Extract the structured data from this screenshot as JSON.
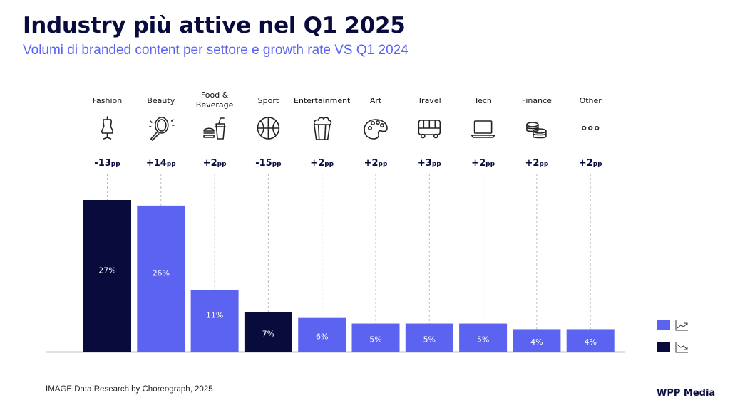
{
  "title": "Industry più attive nel Q1 2025",
  "subtitle": "Volumi di branded content per settore e growth rate VS Q1 2024",
  "footnote": "IMAGE Data Research by Choreograph, 2025",
  "brand": "WPP Media",
  "colors": {
    "up": "#5b63f0",
    "down": "#0a0b3d",
    "text": "#0a0b3d",
    "icon": "#222222",
    "guide": "#bbbbbb"
  },
  "chart_data": {
    "type": "bar",
    "title": "Industry più attive nel Q1 2025",
    "categories": [
      {
        "label": [
          "Fashion"
        ],
        "icon": "dress-form-icon"
      },
      {
        "label": [
          "Beauty"
        ],
        "icon": "mirror-icon"
      },
      {
        "label": [
          "Food &",
          "Beverage"
        ],
        "icon": "burger-drink-icon"
      },
      {
        "label": [
          "Sport"
        ],
        "icon": "basketball-icon"
      },
      {
        "label": [
          "Entertainment"
        ],
        "icon": "popcorn-icon"
      },
      {
        "label": [
          "Art"
        ],
        "icon": "palette-icon"
      },
      {
        "label": [
          "Travel"
        ],
        "icon": "bus-icon"
      },
      {
        "label": [
          "Tech"
        ],
        "icon": "laptop-icon"
      },
      {
        "label": [
          "Finance"
        ],
        "icon": "coins-icon"
      },
      {
        "label": [
          "Other"
        ],
        "icon": "more-icon"
      }
    ],
    "values": [
      27,
      26,
      11,
      7,
      6,
      5,
      5,
      5,
      4,
      4
    ],
    "value_labels": [
      "27%",
      "26%",
      "11%",
      "7%",
      "6%",
      "5%",
      "5%",
      "5%",
      "4%",
      "4%"
    ],
    "growth": [
      {
        "num": "-13",
        "unit": "pp",
        "trend": "down"
      },
      {
        "num": "+14",
        "unit": "pp",
        "trend": "up"
      },
      {
        "num": "+2",
        "unit": "pp",
        "trend": "up"
      },
      {
        "num": "-15",
        "unit": "pp",
        "trend": "down"
      },
      {
        "num": "+2",
        "unit": "pp",
        "trend": "up"
      },
      {
        "num": "+2",
        "unit": "pp",
        "trend": "up"
      },
      {
        "num": "+3",
        "unit": "pp",
        "trend": "up"
      },
      {
        "num": "+2",
        "unit": "pp",
        "trend": "up"
      },
      {
        "num": "+2",
        "unit": "pp",
        "trend": "up"
      },
      {
        "num": "+2",
        "unit": "pp",
        "trend": "up"
      }
    ],
    "legend": [
      {
        "trend": "up",
        "icon": "trend-up-icon"
      },
      {
        "trend": "down",
        "icon": "trend-down-icon"
      }
    ],
    "ylim": [
      0,
      27
    ]
  }
}
